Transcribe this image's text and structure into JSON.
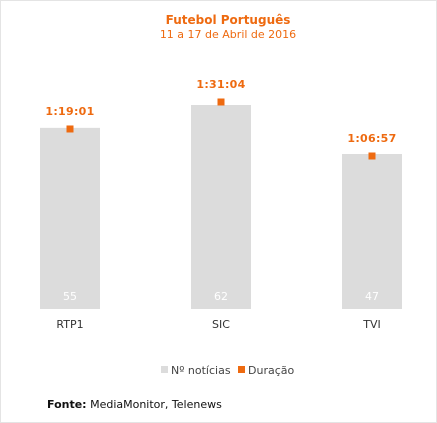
{
  "chart_data": {
    "type": "bar",
    "title": "Futebol Português",
    "subtitle": "11 a 17 de Abril de 2016",
    "categories": [
      "RTP1",
      "SIC",
      "TVI"
    ],
    "series": [
      {
        "name": "Nº notícias",
        "values": [
          55,
          62,
          47
        ],
        "color": "#dcdcdc"
      },
      {
        "name": "Duração",
        "values": [
          4741,
          5464,
          4017
        ],
        "labels": [
          "1:19:01",
          "1:31:04",
          "1:06:57"
        ],
        "color": "#ee6a10"
      }
    ],
    "legend_position": "bottom"
  },
  "source": {
    "label": "Fonte:",
    "text": "MediaMonitor, Telenews"
  }
}
